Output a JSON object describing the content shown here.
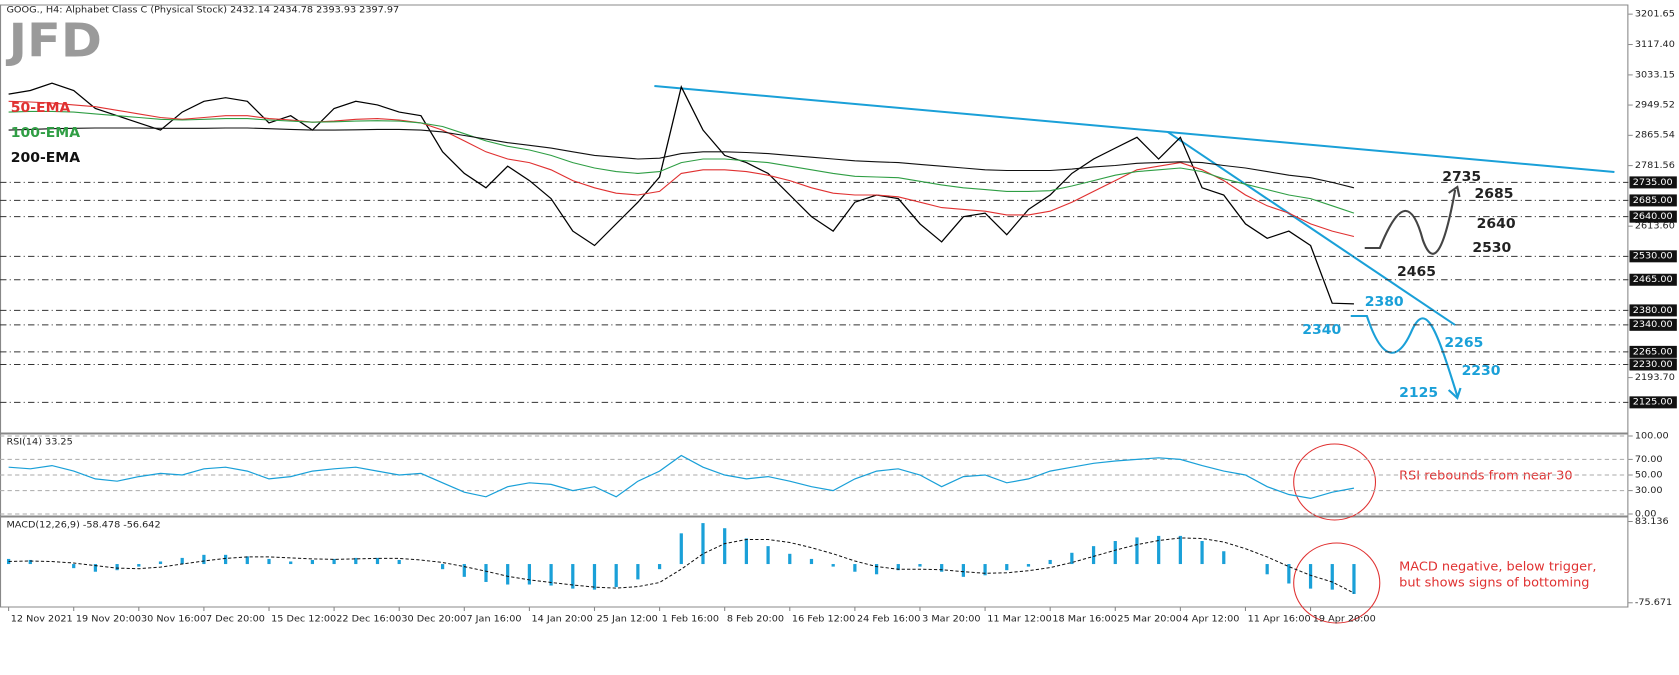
{
  "header": {
    "logo": "JFD"
  },
  "chart_data": [
    {
      "type": "line",
      "title": "GOOG., H4: Alphabet Class C (Physical Stock) 2432.14 2434.78 2393.93 2397.97",
      "categories": [
        "12 Nov 2021",
        null,
        null,
        "19 Nov 20:00",
        null,
        null,
        "30 Nov 16:00",
        null,
        null,
        "7 Dec 20:00",
        null,
        null,
        "15 Dec 12:00",
        null,
        null,
        "22 Dec 16:00",
        null,
        null,
        "30 Dec 20:00",
        null,
        null,
        "7 Jan 16:00",
        null,
        null,
        "14 Jan 20:00",
        null,
        null,
        "25 Jan 12:00",
        null,
        null,
        "1 Feb 16:00",
        null,
        null,
        "8 Feb 20:00",
        null,
        null,
        "16 Feb 12:00",
        null,
        null,
        "24 Feb 16:00",
        null,
        null,
        "3 Mar 20:00",
        null,
        null,
        "11 Mar 12:00",
        null,
        null,
        "18 Mar 16:00",
        null,
        null,
        "25 Mar 20:00",
        null,
        null,
        "4 Apr 12:00",
        null,
        null,
        "11 Apr 16:00",
        null,
        null,
        "19 Apr 20:00",
        null,
        null
      ],
      "series": [
        {
          "color": "#000000",
          "values": [
            2980,
            2990,
            3010,
            2990,
            2940,
            2920,
            2900,
            2880,
            2930,
            2960,
            2970,
            2960,
            2900,
            2920,
            2880,
            2940,
            2960,
            2950,
            2930,
            2920,
            2820,
            2760,
            2720,
            2780,
            2740,
            2690,
            2600,
            2560,
            2620,
            2680,
            2750,
            3000,
            2880,
            2810,
            2790,
            2760,
            2700,
            2640,
            2600,
            2680,
            2700,
            2690,
            2620,
            2570,
            2640,
            2650,
            2590,
            2660,
            2700,
            2760,
            2800,
            2830,
            2860,
            2800,
            2860,
            2720,
            2700,
            2620,
            2580,
            2600,
            2560,
            2400,
            2398
          ]
        },
        {
          "name": "50-EMA",
          "color": "#e03131",
          "values": [
            2960,
            2958,
            2955,
            2950,
            2945,
            2935,
            2925,
            2915,
            2910,
            2915,
            2920,
            2920,
            2912,
            2908,
            2902,
            2905,
            2910,
            2912,
            2908,
            2900,
            2880,
            2850,
            2820,
            2800,
            2790,
            2770,
            2740,
            2720,
            2705,
            2700,
            2710,
            2760,
            2770,
            2770,
            2765,
            2755,
            2740,
            2720,
            2705,
            2700,
            2700,
            2695,
            2680,
            2665,
            2660,
            2655,
            2645,
            2645,
            2655,
            2680,
            2710,
            2740,
            2770,
            2780,
            2790,
            2770,
            2740,
            2700,
            2670,
            2650,
            2620,
            2600,
            2585
          ]
        },
        {
          "name": "100-EMA",
          "color": "#2f9e44",
          "values": [
            2930,
            2932,
            2932,
            2930,
            2925,
            2920,
            2915,
            2910,
            2908,
            2910,
            2912,
            2912,
            2908,
            2905,
            2902,
            2903,
            2905,
            2906,
            2905,
            2900,
            2890,
            2870,
            2850,
            2835,
            2825,
            2810,
            2790,
            2775,
            2765,
            2760,
            2765,
            2790,
            2800,
            2800,
            2795,
            2790,
            2780,
            2770,
            2760,
            2752,
            2750,
            2748,
            2738,
            2728,
            2720,
            2715,
            2710,
            2710,
            2712,
            2725,
            2740,
            2755,
            2765,
            2770,
            2775,
            2765,
            2745,
            2730,
            2715,
            2700,
            2690,
            2670,
            2650
          ]
        },
        {
          "name": "200-EMA",
          "color": "#111111",
          "values": [
            2880,
            2882,
            2884,
            2885,
            2886,
            2886,
            2886,
            2885,
            2885,
            2885,
            2886,
            2886,
            2884,
            2882,
            2880,
            2880,
            2881,
            2882,
            2882,
            2880,
            2875,
            2865,
            2855,
            2845,
            2838,
            2830,
            2820,
            2810,
            2805,
            2800,
            2802,
            2815,
            2820,
            2820,
            2818,
            2815,
            2810,
            2805,
            2800,
            2795,
            2792,
            2790,
            2785,
            2780,
            2775,
            2770,
            2768,
            2768,
            2768,
            2772,
            2778,
            2782,
            2788,
            2790,
            2792,
            2790,
            2782,
            2775,
            2765,
            2755,
            2748,
            2735,
            2720
          ]
        }
      ],
      "ylim": [
        2040,
        3227
      ],
      "yticks": [
        3201.65,
        {
          "value": 3117.4,
          "label": "3117.40"
        },
        3033.15,
        2949.52,
        2865.54,
        2781.56,
        {
          "value": 2613.6,
          "label": "2613.60"
        },
        {
          "value": 2193.7,
          "label": "2193.70"
        }
      ],
      "levels": [
        {
          "value": 2735,
          "label": "2735.00",
          "color": "#222222"
        },
        {
          "value": 2685,
          "label": "2685.00",
          "color": "#222222"
        },
        {
          "value": 2640,
          "label": "2640.00",
          "color": "#222222"
        },
        {
          "value": 2530,
          "label": "2530.00",
          "color": "#222222"
        },
        {
          "value": 2465,
          "label": "2465.00",
          "color": "#222222"
        },
        {
          "value": 2380,
          "label": "2380.00",
          "color": "#1aa0d8"
        },
        {
          "value": 2340,
          "label": "2340.00",
          "color": "#1aa0d8"
        },
        {
          "value": 2265,
          "label": "2265.00",
          "color": "#1aa0d8"
        },
        {
          "value": 2230,
          "label": "2230.00",
          "color": "#1aa0d8"
        },
        {
          "value": 2125,
          "label": "2125.00",
          "color": "#1aa0d8"
        }
      ]
    },
    {
      "type": "line",
      "title": "RSI(14) 33.25",
      "series": [
        {
          "color": "#1aa0d8",
          "values": [
            60,
            58,
            62,
            55,
            45,
            42,
            48,
            52,
            50,
            58,
            60,
            55,
            45,
            48,
            55,
            58,
            60,
            55,
            50,
            52,
            40,
            28,
            22,
            35,
            40,
            38,
            30,
            35,
            22,
            42,
            55,
            75,
            60,
            50,
            45,
            48,
            42,
            35,
            30,
            45,
            55,
            58,
            50,
            35,
            48,
            50,
            40,
            45,
            55,
            60,
            65,
            68,
            70,
            72,
            70,
            62,
            55,
            50,
            35,
            25,
            20,
            28,
            33.25
          ]
        }
      ],
      "ylim": [
        0,
        100
      ],
      "yticks": [
        {
          "value": 100,
          "label": "100.00"
        },
        {
          "value": 70,
          "label": "70.00"
        },
        {
          "value": 50,
          "label": "50.00"
        },
        {
          "value": 30,
          "label": "30.00"
        },
        {
          "value": 0,
          "label": "0.00"
        }
      ],
      "annotation": "RSI rebounds from near 30"
    },
    {
      "type": "macd",
      "title": "MACD(12,26,9) -58.478 -56.642",
      "series": [
        {
          "color": "#1aa0d8",
          "values": [
            10,
            8,
            0,
            -8,
            -15,
            -12,
            -5,
            5,
            12,
            18,
            18,
            15,
            10,
            5,
            8,
            10,
            12,
            12,
            8,
            0,
            -10,
            -25,
            -35,
            -40,
            -40,
            -42,
            -48,
            -50,
            -45,
            -30,
            -10,
            60,
            80,
            70,
            50,
            35,
            20,
            10,
            -5,
            -15,
            -20,
            -12,
            -5,
            -15,
            -25,
            -22,
            -12,
            -5,
            8,
            22,
            35,
            45,
            52,
            55,
            55,
            45,
            25,
            0,
            -20,
            -38,
            -48,
            -50,
            -58.478
          ]
        },
        {
          "color": "#111111",
          "values": [
            5,
            6,
            5,
            2,
            -3,
            -8,
            -9,
            -6,
            0,
            6,
            11,
            14,
            14,
            12,
            10,
            9,
            10,
            11,
            11,
            8,
            3,
            -5,
            -14,
            -24,
            -31,
            -36,
            -41,
            -45,
            -47,
            -44,
            -36,
            -10,
            20,
            40,
            48,
            48,
            42,
            32,
            20,
            6,
            -5,
            -10,
            -10,
            -11,
            -15,
            -18,
            -17,
            -13,
            -7,
            3,
            15,
            27,
            38,
            46,
            51,
            50,
            43,
            30,
            14,
            -5,
            -22,
            -35,
            -56.642
          ]
        }
      ],
      "ylim": [
        -80,
        88
      ],
      "yticks": [
        83.136,
        -75.671
      ],
      "annotation": [
        "MACD negative, below trigger,",
        "but shows signs of bottoming"
      ]
    }
  ]
}
